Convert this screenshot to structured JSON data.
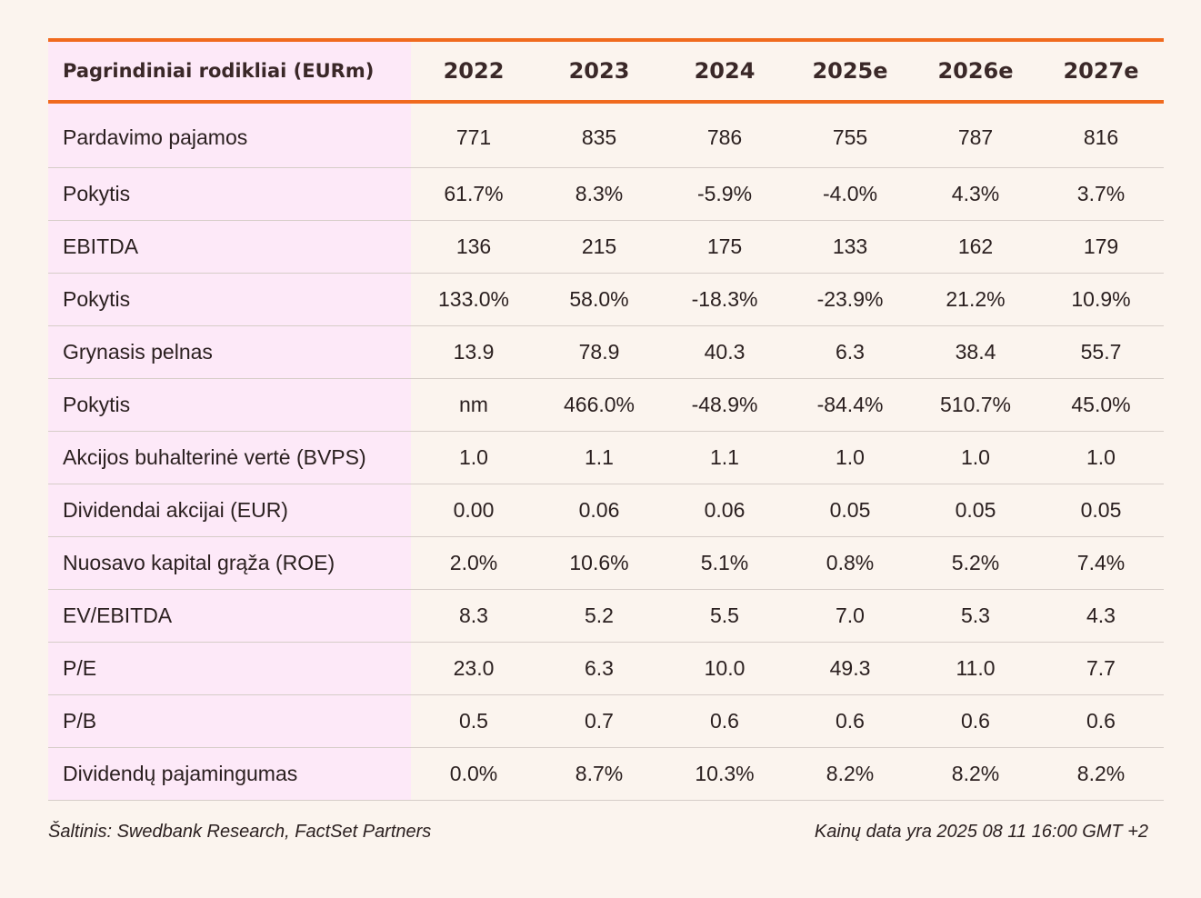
{
  "table": {
    "header": {
      "label": "Pagrindiniai rodikliai (EURm)",
      "years": [
        "2022",
        "2023",
        "2024",
        "2025e",
        "2026e",
        "2027e"
      ]
    },
    "rows": [
      {
        "label": "Pardavimo pajamos",
        "values": [
          "771",
          "835",
          "786",
          "755",
          "787",
          "816"
        ]
      },
      {
        "label": "Pokytis",
        "values": [
          "61.7%",
          "8.3%",
          "-5.9%",
          "-4.0%",
          "4.3%",
          "3.7%"
        ]
      },
      {
        "label": "EBITDA",
        "values": [
          "136",
          "215",
          "175",
          "133",
          "162",
          "179"
        ]
      },
      {
        "label": "Pokytis",
        "values": [
          "133.0%",
          "58.0%",
          "-18.3%",
          "-23.9%",
          "21.2%",
          "10.9%"
        ]
      },
      {
        "label": "Grynasis pelnas",
        "values": [
          "13.9",
          "78.9",
          "40.3",
          "6.3",
          "38.4",
          "55.7"
        ]
      },
      {
        "label": "Pokytis",
        "values": [
          "nm",
          "466.0%",
          "-48.9%",
          "-84.4%",
          "510.7%",
          "45.0%"
        ]
      },
      {
        "label": "Akcijos buhalterinė vertė (BVPS)",
        "values": [
          "1.0",
          "1.1",
          "1.1",
          "1.0",
          "1.0",
          "1.0"
        ]
      },
      {
        "label": "Dividendai akcijai (EUR)",
        "values": [
          "0.00",
          "0.06",
          "0.06",
          "0.05",
          "0.05",
          "0.05"
        ]
      },
      {
        "label": "Nuosavo kapital grąža (ROE)",
        "values": [
          "2.0%",
          "10.6%",
          "5.1%",
          "0.8%",
          "5.2%",
          "7.4%"
        ]
      },
      {
        "label": "EV/EBITDA",
        "values": [
          "8.3",
          "5.2",
          "5.5",
          "7.0",
          "5.3",
          "4.3"
        ]
      },
      {
        "label": "P/E",
        "values": [
          "23.0",
          "6.3",
          "10.0",
          "49.3",
          "11.0",
          "7.7"
        ]
      },
      {
        "label": "P/B",
        "values": [
          "0.5",
          "0.7",
          "0.6",
          "0.6",
          "0.6",
          "0.6"
        ]
      },
      {
        "label": "Dividendų pajamingumas",
        "values": [
          "0.0%",
          "8.7%",
          "10.3%",
          "8.2%",
          "8.2%",
          "8.2%"
        ]
      }
    ]
  },
  "footer": {
    "source": "Šaltinis: Swedbank Research, FactSet Partners",
    "price_date": "Kainų data yra 2025 08 11 16:00 GMT +2"
  },
  "colors": {
    "background": "#fbf4ee",
    "accent_rule": "#f06a1e",
    "label_column": "#fde9f8",
    "row_divider": "#d6cdc8"
  }
}
